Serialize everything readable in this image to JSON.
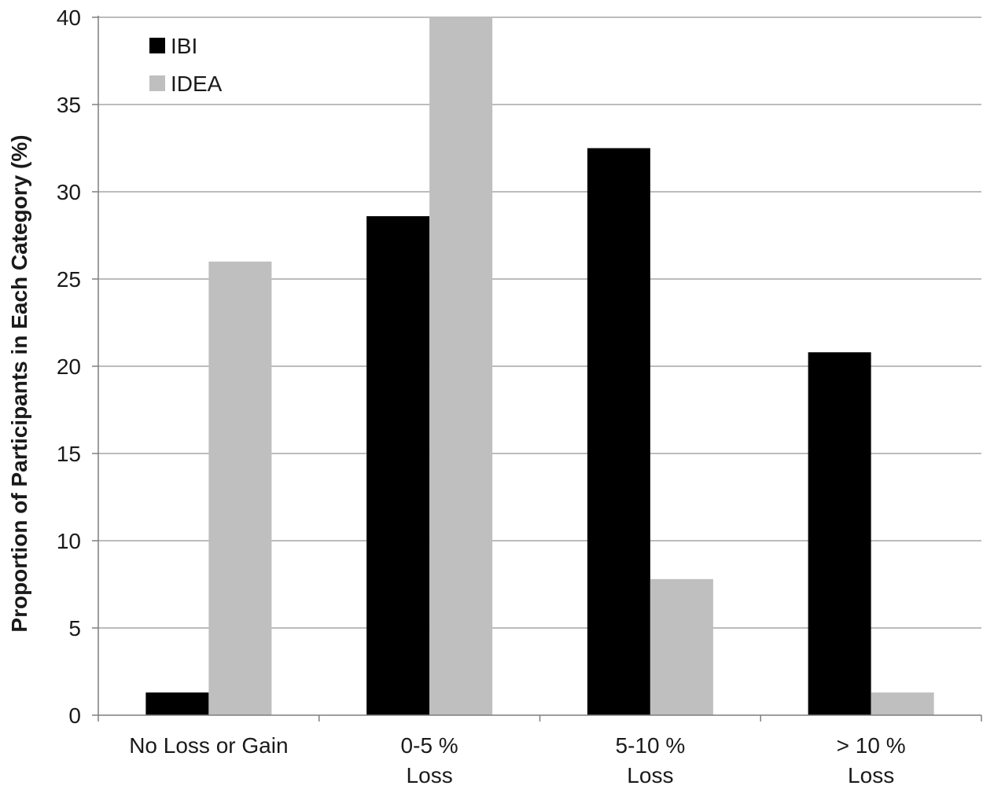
{
  "chart_data": {
    "type": "bar",
    "title": "",
    "xlabel": "",
    "ylabel": "Proportion of Participants in Each Category (%)",
    "ylim": [
      0,
      40
    ],
    "yticks": [
      0,
      5,
      10,
      15,
      20,
      25,
      30,
      35,
      40
    ],
    "grid": true,
    "legend_position": "top-left",
    "categories": [
      [
        "No Loss or Gain"
      ],
      [
        "0-5 %",
        "Loss"
      ],
      [
        "5-10 %",
        "Loss"
      ],
      [
        "> 10 %",
        "Loss"
      ]
    ],
    "series": [
      {
        "name": "IBI",
        "color": "#000000",
        "values": [
          1.3,
          28.6,
          32.5,
          20.8
        ]
      },
      {
        "name": "IDEA",
        "color": "#bfbfbf",
        "values": [
          26.0,
          40.0,
          7.8,
          1.3
        ]
      }
    ]
  }
}
